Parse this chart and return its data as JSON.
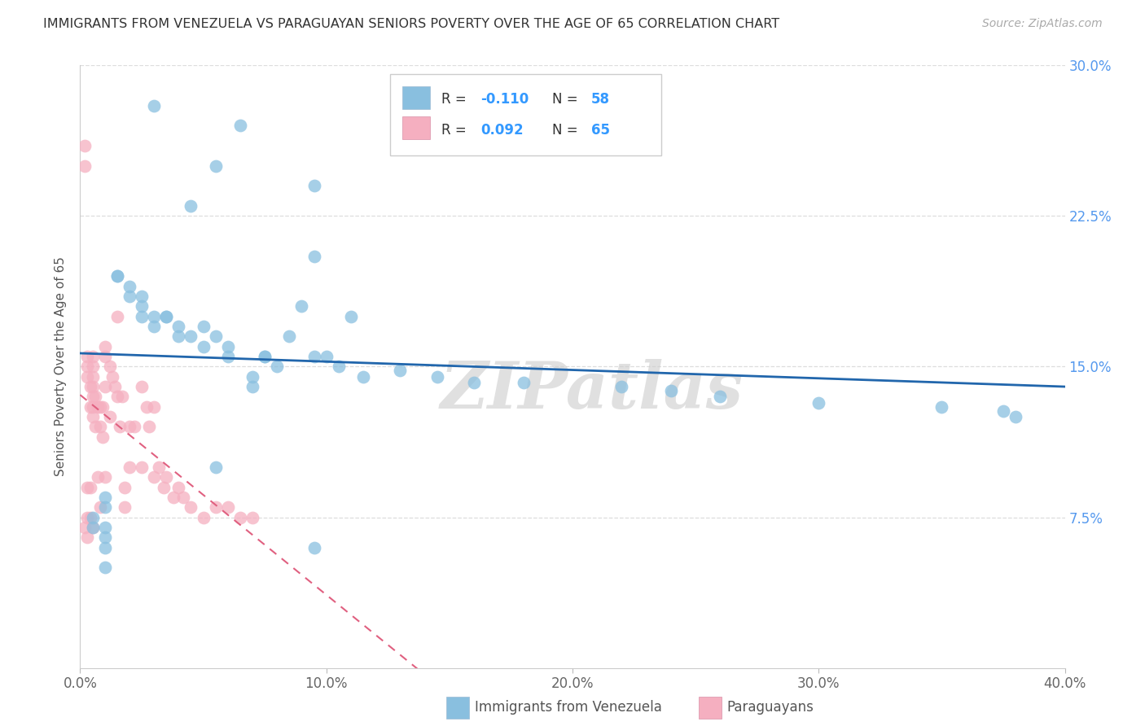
{
  "title": "IMMIGRANTS FROM VENEZUELA VS PARAGUAYAN SENIORS POVERTY OVER THE AGE OF 65 CORRELATION CHART",
  "source": "Source: ZipAtlas.com",
  "xlabel_blue": "Immigrants from Venezuela",
  "xlabel_pink": "Paraguayans",
  "ylabel": "Seniors Poverty Over the Age of 65",
  "xlim": [
    0.0,
    0.4
  ],
  "ylim": [
    0.0,
    0.3
  ],
  "xticks": [
    0.0,
    0.1,
    0.2,
    0.3,
    0.4
  ],
  "xtick_labels": [
    "0.0%",
    "10.0%",
    "20.0%",
    "30.0%",
    "40.0%"
  ],
  "yticks": [
    0.075,
    0.15,
    0.225,
    0.3
  ],
  "ytick_labels": [
    "7.5%",
    "15.0%",
    "22.5%",
    "30.0%"
  ],
  "legend_R_blue": "-0.110",
  "legend_N_blue": "58",
  "legend_R_pink": "0.092",
  "legend_N_pink": "65",
  "blue_color": "#89bfdf",
  "pink_color": "#f5afc0",
  "blue_line_color": "#2166ac",
  "pink_line_color": "#e06080",
  "watermark": "ZIPatlas",
  "blue_x": [
    0.03,
    0.065,
    0.055,
    0.095,
    0.045,
    0.095,
    0.015,
    0.015,
    0.02,
    0.02,
    0.025,
    0.025,
    0.025,
    0.03,
    0.03,
    0.035,
    0.035,
    0.04,
    0.04,
    0.045,
    0.05,
    0.05,
    0.055,
    0.06,
    0.06,
    0.07,
    0.07,
    0.075,
    0.075,
    0.08,
    0.085,
    0.09,
    0.095,
    0.1,
    0.105,
    0.11,
    0.115,
    0.13,
    0.145,
    0.16,
    0.18,
    0.22,
    0.24,
    0.26,
    0.3,
    0.35,
    0.375,
    0.38,
    0.005,
    0.005,
    0.01,
    0.01,
    0.01,
    0.01,
    0.01,
    0.01,
    0.055,
    0.095
  ],
  "blue_y": [
    0.28,
    0.27,
    0.25,
    0.24,
    0.23,
    0.205,
    0.195,
    0.195,
    0.19,
    0.185,
    0.185,
    0.18,
    0.175,
    0.175,
    0.17,
    0.175,
    0.175,
    0.17,
    0.165,
    0.165,
    0.17,
    0.16,
    0.165,
    0.16,
    0.155,
    0.145,
    0.14,
    0.155,
    0.155,
    0.15,
    0.165,
    0.18,
    0.155,
    0.155,
    0.15,
    0.175,
    0.145,
    0.148,
    0.145,
    0.142,
    0.142,
    0.14,
    0.138,
    0.135,
    0.132,
    0.13,
    0.128,
    0.125,
    0.075,
    0.07,
    0.085,
    0.08,
    0.07,
    0.065,
    0.06,
    0.05,
    0.1,
    0.06
  ],
  "pink_x": [
    0.002,
    0.002,
    0.002,
    0.003,
    0.003,
    0.003,
    0.003,
    0.004,
    0.004,
    0.004,
    0.004,
    0.005,
    0.005,
    0.005,
    0.005,
    0.005,
    0.005,
    0.005,
    0.005,
    0.006,
    0.006,
    0.007,
    0.007,
    0.008,
    0.008,
    0.008,
    0.009,
    0.009,
    0.01,
    0.01,
    0.01,
    0.01,
    0.012,
    0.012,
    0.013,
    0.014,
    0.015,
    0.015,
    0.016,
    0.017,
    0.018,
    0.018,
    0.02,
    0.02,
    0.022,
    0.025,
    0.025,
    0.027,
    0.028,
    0.03,
    0.03,
    0.032,
    0.034,
    0.035,
    0.038,
    0.04,
    0.042,
    0.045,
    0.05,
    0.055,
    0.06,
    0.065,
    0.07,
    0.003,
    0.003
  ],
  "pink_y": [
    0.26,
    0.25,
    0.07,
    0.155,
    0.15,
    0.145,
    0.09,
    0.14,
    0.13,
    0.09,
    0.075,
    0.155,
    0.15,
    0.145,
    0.14,
    0.135,
    0.13,
    0.125,
    0.07,
    0.135,
    0.12,
    0.13,
    0.095,
    0.13,
    0.12,
    0.08,
    0.13,
    0.115,
    0.16,
    0.155,
    0.14,
    0.095,
    0.15,
    0.125,
    0.145,
    0.14,
    0.175,
    0.135,
    0.12,
    0.135,
    0.09,
    0.08,
    0.12,
    0.1,
    0.12,
    0.14,
    0.1,
    0.13,
    0.12,
    0.13,
    0.095,
    0.1,
    0.09,
    0.095,
    0.085,
    0.09,
    0.085,
    0.08,
    0.075,
    0.08,
    0.08,
    0.075,
    0.075,
    0.075,
    0.065
  ]
}
